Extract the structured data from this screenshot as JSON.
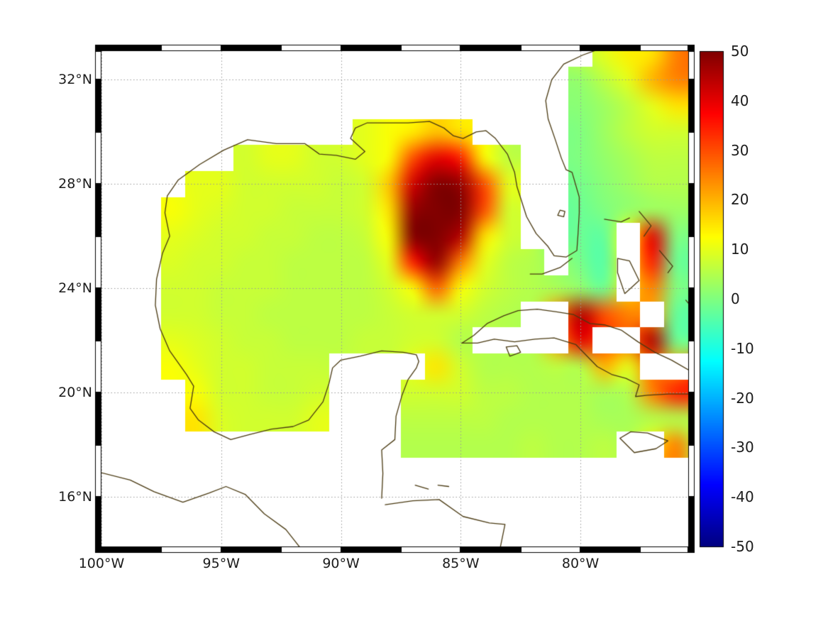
{
  "chart_data": {
    "type": "heatmap",
    "title": "",
    "xlabel": "",
    "ylabel": "",
    "projection": "lon-lat",
    "lon_range": [
      -100,
      -75.5
    ],
    "lat_range": [
      14.1,
      33.1
    ],
    "grid_on": true,
    "x_ticks": [
      {
        "value": -100,
        "label": "100°W"
      },
      {
        "value": -95,
        "label": "95°W"
      },
      {
        "value": -90,
        "label": "90°W"
      },
      {
        "value": -85,
        "label": "85°W"
      },
      {
        "value": -80,
        "label": "80°W"
      }
    ],
    "y_ticks": [
      {
        "value": 32,
        "label": "32°N"
      },
      {
        "value": 28,
        "label": "28°N"
      },
      {
        "value": 24,
        "label": "24°N"
      },
      {
        "value": 20,
        "label": "20°N"
      },
      {
        "value": 16,
        "label": "16°N"
      }
    ],
    "colorbar": {
      "min": -50,
      "max": 50,
      "colormap": "jet",
      "position": "right",
      "tick_values": [
        50,
        40,
        30,
        20,
        10,
        0,
        -10,
        -20,
        -30,
        -40,
        -50
      ],
      "tick_labels": [
        "50",
        "40",
        "30",
        "20",
        "10",
        "0",
        "-10",
        "-20",
        "-30",
        "-40",
        "-50"
      ]
    },
    "colors": {
      "coastline": "#4a3a12",
      "gridline": "#9a9a9a",
      "frame": "#000000",
      "land": "#ffffff",
      "background": "#ffffff"
    },
    "grid": {
      "lon_start": -100,
      "lon_step": 1,
      "lat_start": 33,
      "lat_step": -1,
      "comment": "rows: lat 33 down to 14; cols: lon -100 to -75; null = no data (land/void)",
      "values": [
        [
          null,
          null,
          null,
          null,
          null,
          null,
          null,
          null,
          null,
          null,
          null,
          null,
          null,
          null,
          null,
          null,
          null,
          null,
          null,
          null,
          null,
          10,
          14,
          15,
          25,
          28
        ],
        [
          null,
          null,
          null,
          null,
          null,
          null,
          null,
          null,
          null,
          null,
          null,
          null,
          null,
          null,
          null,
          null,
          null,
          null,
          null,
          null,
          2,
          6,
          10,
          20,
          25,
          25
        ],
        [
          null,
          null,
          null,
          null,
          null,
          null,
          null,
          null,
          null,
          null,
          null,
          null,
          null,
          null,
          null,
          null,
          null,
          null,
          null,
          null,
          1,
          3,
          6,
          10,
          15,
          15
        ],
        [
          null,
          null,
          null,
          null,
          null,
          null,
          null,
          null,
          null,
          null,
          null,
          10,
          12,
          14,
          18,
          15,
          null,
          null,
          null,
          null,
          0,
          3,
          6,
          8,
          8,
          8
        ],
        [
          null,
          null,
          null,
          null,
          null,
          null,
          8,
          10,
          10,
          8,
          8,
          10,
          12,
          30,
          40,
          35,
          12,
          6,
          null,
          null,
          0,
          2,
          4,
          6,
          6,
          6
        ],
        [
          null,
          null,
          null,
          null,
          10,
          10,
          8,
          8,
          8,
          8,
          7,
          8,
          18,
          42,
          50,
          48,
          30,
          10,
          null,
          null,
          -1,
          1,
          3,
          5,
          5,
          5
        ],
        [
          null,
          null,
          null,
          12,
          10,
          9,
          8,
          8,
          7,
          7,
          7,
          8,
          15,
          48,
          52,
          50,
          30,
          8,
          null,
          null,
          -2,
          0,
          2,
          3,
          3,
          3
        ],
        [
          null,
          null,
          null,
          10,
          9,
          8,
          8,
          7,
          7,
          6,
          6,
          7,
          12,
          50,
          52,
          45,
          15,
          8,
          null,
          null,
          -2,
          -3,
          null,
          40,
          0,
          0
        ],
        [
          null,
          null,
          null,
          9,
          8,
          8,
          7,
          7,
          6,
          6,
          6,
          6,
          10,
          35,
          48,
          25,
          10,
          6,
          5,
          null,
          -1,
          -4,
          null,
          35,
          -2,
          -2
        ],
        [
          null,
          null,
          null,
          8,
          8,
          7,
          7,
          7,
          6,
          6,
          6,
          6,
          8,
          12,
          28,
          12,
          8,
          6,
          5,
          4,
          2,
          -2,
          null,
          25,
          0,
          0
        ],
        [
          null,
          null,
          null,
          8,
          8,
          7,
          7,
          6,
          6,
          6,
          6,
          6,
          7,
          8,
          8,
          8,
          6,
          5,
          null,
          null,
          45,
          30,
          25,
          null,
          -3,
          -3
        ],
        [
          null,
          null,
          null,
          10,
          9,
          8,
          7,
          7,
          6,
          6,
          6,
          7,
          7,
          8,
          8,
          5,
          null,
          null,
          null,
          null,
          40,
          null,
          null,
          45,
          -2,
          -2
        ],
        [
          null,
          null,
          null,
          12,
          10,
          8,
          8,
          7,
          7,
          7,
          null,
          null,
          null,
          null,
          15,
          8,
          5,
          5,
          5,
          6,
          5,
          20,
          10,
          null,
          null,
          30
        ],
        [
          null,
          null,
          null,
          null,
          12,
          8,
          8,
          7,
          7,
          8,
          null,
          null,
          null,
          8,
          8,
          8,
          6,
          6,
          5,
          5,
          5,
          4,
          5,
          25,
          35,
          35
        ],
        [
          null,
          null,
          null,
          null,
          15,
          9,
          8,
          8,
          8,
          10,
          null,
          null,
          null,
          6,
          6,
          6,
          6,
          5,
          5,
          5,
          5,
          4,
          4,
          5,
          5,
          5
        ],
        [
          null,
          null,
          null,
          null,
          null,
          null,
          null,
          null,
          null,
          null,
          null,
          null,
          null,
          5,
          5,
          5,
          5,
          5,
          6,
          5,
          5,
          6,
          null,
          null,
          25,
          5
        ],
        [
          null,
          null,
          null,
          null,
          null,
          null,
          null,
          null,
          null,
          null,
          null,
          null,
          null,
          null,
          null,
          null,
          null,
          null,
          null,
          null,
          null,
          null,
          null,
          null,
          null,
          null
        ],
        [
          null,
          null,
          null,
          null,
          null,
          null,
          null,
          null,
          null,
          null,
          null,
          null,
          null,
          null,
          null,
          null,
          null,
          null,
          null,
          null,
          null,
          null,
          null,
          null,
          null,
          null
        ],
        [
          null,
          null,
          null,
          null,
          null,
          null,
          null,
          null,
          null,
          null,
          null,
          null,
          null,
          null,
          null,
          null,
          null,
          null,
          null,
          null,
          null,
          null,
          null,
          null,
          null,
          null
        ],
        [
          null,
          null,
          null,
          null,
          null,
          null,
          null,
          null,
          null,
          null,
          null,
          null,
          null,
          null,
          null,
          null,
          null,
          null,
          null,
          null,
          null,
          null,
          null,
          null,
          null,
          null
        ]
      ]
    },
    "coastlines": {
      "gulf_mainland": [
        [
          -88.3,
          15.95
        ],
        [
          -88.25,
          16.9
        ],
        [
          -88.3,
          17.8
        ],
        [
          -87.75,
          18.2
        ],
        [
          -87.7,
          19.1
        ],
        [
          -87.45,
          19.9
        ],
        [
          -87.2,
          20.5
        ],
        [
          -86.85,
          20.95
        ],
        [
          -86.75,
          21.2
        ],
        [
          -86.85,
          21.45
        ],
        [
          -87.4,
          21.55
        ],
        [
          -88.3,
          21.6
        ],
        [
          -89.2,
          21.4
        ],
        [
          -90.0,
          21.25
        ],
        [
          -90.35,
          20.95
        ],
        [
          -90.5,
          20.35
        ],
        [
          -90.75,
          19.65
        ],
        [
          -91.35,
          18.95
        ],
        [
          -92.0,
          18.7
        ],
        [
          -92.9,
          18.6
        ],
        [
          -93.8,
          18.4
        ],
        [
          -94.6,
          18.2
        ],
        [
          -95.3,
          18.5
        ],
        [
          -95.95,
          18.95
        ],
        [
          -96.3,
          19.4
        ],
        [
          -96.15,
          20.25
        ],
        [
          -96.45,
          20.7
        ],
        [
          -97.15,
          21.6
        ],
        [
          -97.55,
          22.45
        ],
        [
          -97.75,
          23.35
        ],
        [
          -97.7,
          24.35
        ],
        [
          -97.45,
          25.35
        ],
        [
          -97.15,
          26.0
        ],
        [
          -97.35,
          26.9
        ],
        [
          -97.25,
          27.55
        ],
        [
          -96.8,
          28.15
        ],
        [
          -95.9,
          28.75
        ],
        [
          -94.9,
          29.3
        ],
        [
          -93.9,
          29.7
        ],
        [
          -92.7,
          29.55
        ],
        [
          -91.5,
          29.55
        ],
        [
          -90.9,
          29.15
        ],
        [
          -90.2,
          29.1
        ],
        [
          -89.4,
          28.95
        ],
        [
          -89.0,
          29.25
        ],
        [
          -89.6,
          29.75
        ],
        [
          -89.4,
          30.15
        ],
        [
          -88.9,
          30.35
        ],
        [
          -88.0,
          30.35
        ],
        [
          -87.2,
          30.35
        ],
        [
          -86.3,
          30.4
        ],
        [
          -85.7,
          30.15
        ],
        [
          -85.3,
          29.85
        ],
        [
          -84.9,
          29.75
        ],
        [
          -84.35,
          30.0
        ],
        [
          -83.95,
          30.05
        ],
        [
          -83.55,
          29.75
        ],
        [
          -83.05,
          29.15
        ],
        [
          -82.75,
          28.45
        ],
        [
          -82.65,
          27.9
        ],
        [
          -82.25,
          26.75
        ],
        [
          -81.85,
          26.1
        ],
        [
          -81.35,
          25.6
        ],
        [
          -81.1,
          25.25
        ],
        [
          -80.6,
          25.2
        ],
        [
          -80.15,
          25.45
        ],
        [
          -80.1,
          26.1
        ],
        [
          -80.05,
          26.9
        ],
        [
          -80.05,
          27.5
        ],
        [
          -80.35,
          28.45
        ],
        [
          -80.6,
          28.55
        ],
        [
          -80.8,
          29.0
        ],
        [
          -81.05,
          29.7
        ],
        [
          -81.35,
          30.5
        ],
        [
          -81.45,
          31.2
        ],
        [
          -81.2,
          32.0
        ],
        [
          -80.7,
          32.6
        ],
        [
          -79.9,
          32.95
        ],
        [
          -79.15,
          33.2
        ]
      ],
      "pacific_coast": [
        [
          -100.1,
          16.95
        ],
        [
          -98.8,
          16.65
        ],
        [
          -97.8,
          16.2
        ],
        [
          -96.6,
          15.8
        ],
        [
          -95.5,
          16.15
        ],
        [
          -94.8,
          16.4
        ],
        [
          -94.0,
          16.1
        ],
        [
          -93.2,
          15.35
        ],
        [
          -92.3,
          14.75
        ],
        [
          -91.7,
          14.05
        ]
      ],
      "honduras": [
        [
          -88.15,
          15.7
        ],
        [
          -87.0,
          15.85
        ],
        [
          -85.9,
          15.9
        ],
        [
          -84.9,
          15.25
        ],
        [
          -83.8,
          15.0
        ],
        [
          -83.15,
          14.95
        ],
        [
          -83.35,
          14.05
        ]
      ],
      "bay_island_1": [
        [
          -86.9,
          16.45
        ],
        [
          -86.35,
          16.3
        ]
      ],
      "bay_island_2": [
        [
          -85.95,
          16.45
        ],
        [
          -85.5,
          16.4
        ]
      ],
      "cuba_north": [
        [
          -84.95,
          21.9
        ],
        [
          -84.45,
          22.2
        ],
        [
          -83.9,
          22.65
        ],
        [
          -83.2,
          22.95
        ],
        [
          -82.6,
          23.15
        ],
        [
          -81.8,
          23.2
        ],
        [
          -81.0,
          23.1
        ],
        [
          -80.3,
          23.0
        ],
        [
          -79.6,
          22.65
        ],
        [
          -79.0,
          22.6
        ],
        [
          -78.3,
          22.4
        ],
        [
          -77.6,
          21.95
        ],
        [
          -76.9,
          21.55
        ],
        [
          -76.2,
          21.25
        ],
        [
          -75.45,
          20.85
        ]
      ],
      "cuba_south": [
        [
          -75.45,
          19.95
        ],
        [
          -76.3,
          19.95
        ],
        [
          -77.2,
          19.9
        ],
        [
          -77.7,
          19.85
        ],
        [
          -77.55,
          20.3
        ],
        [
          -78.1,
          20.55
        ],
        [
          -78.7,
          20.7
        ],
        [
          -79.3,
          21.0
        ],
        [
          -80.2,
          21.85
        ],
        [
          -81.1,
          22.1
        ],
        [
          -81.9,
          22.05
        ],
        [
          -82.75,
          21.95
        ],
        [
          -83.6,
          22.05
        ],
        [
          -84.3,
          21.9
        ],
        [
          -84.95,
          21.9
        ]
      ],
      "isle_of_youth": [
        [
          -83.1,
          21.75
        ],
        [
          -82.65,
          21.8
        ],
        [
          -82.5,
          21.55
        ],
        [
          -82.95,
          21.4
        ],
        [
          -83.1,
          21.75
        ]
      ],
      "jamaica": [
        [
          -78.35,
          18.25
        ],
        [
          -77.9,
          18.5
        ],
        [
          -77.2,
          18.45
        ],
        [
          -76.35,
          18.15
        ],
        [
          -76.85,
          17.85
        ],
        [
          -77.75,
          17.7
        ],
        [
          -78.35,
          18.25
        ]
      ],
      "grand_bahama": [
        [
          -79.0,
          26.65
        ],
        [
          -78.3,
          26.55
        ],
        [
          -77.95,
          26.7
        ]
      ],
      "abaco": [
        [
          -77.55,
          26.95
        ],
        [
          -77.05,
          26.4
        ],
        [
          -77.35,
          26.0
        ]
      ],
      "andros": [
        [
          -78.45,
          25.15
        ],
        [
          -77.95,
          25.05
        ],
        [
          -77.55,
          24.3
        ],
        [
          -78.15,
          23.8
        ],
        [
          -78.45,
          24.6
        ],
        [
          -78.45,
          25.15
        ]
      ],
      "eleuthera": [
        [
          -76.7,
          25.45
        ],
        [
          -76.15,
          24.85
        ],
        [
          -76.35,
          24.6
        ]
      ],
      "long_island": [
        [
          -75.6,
          23.55
        ],
        [
          -75.2,
          23.1
        ]
      ],
      "florida_keys": [
        [
          -80.35,
          25.15
        ],
        [
          -80.85,
          24.8
        ],
        [
          -81.6,
          24.55
        ],
        [
          -82.1,
          24.55
        ]
      ],
      "lake_okeechobee": [
        [
          -80.85,
          27.0
        ],
        [
          -80.65,
          26.95
        ],
        [
          -80.7,
          26.75
        ],
        [
          -80.95,
          26.8
        ],
        [
          -80.85,
          27.0
        ]
      ]
    }
  }
}
